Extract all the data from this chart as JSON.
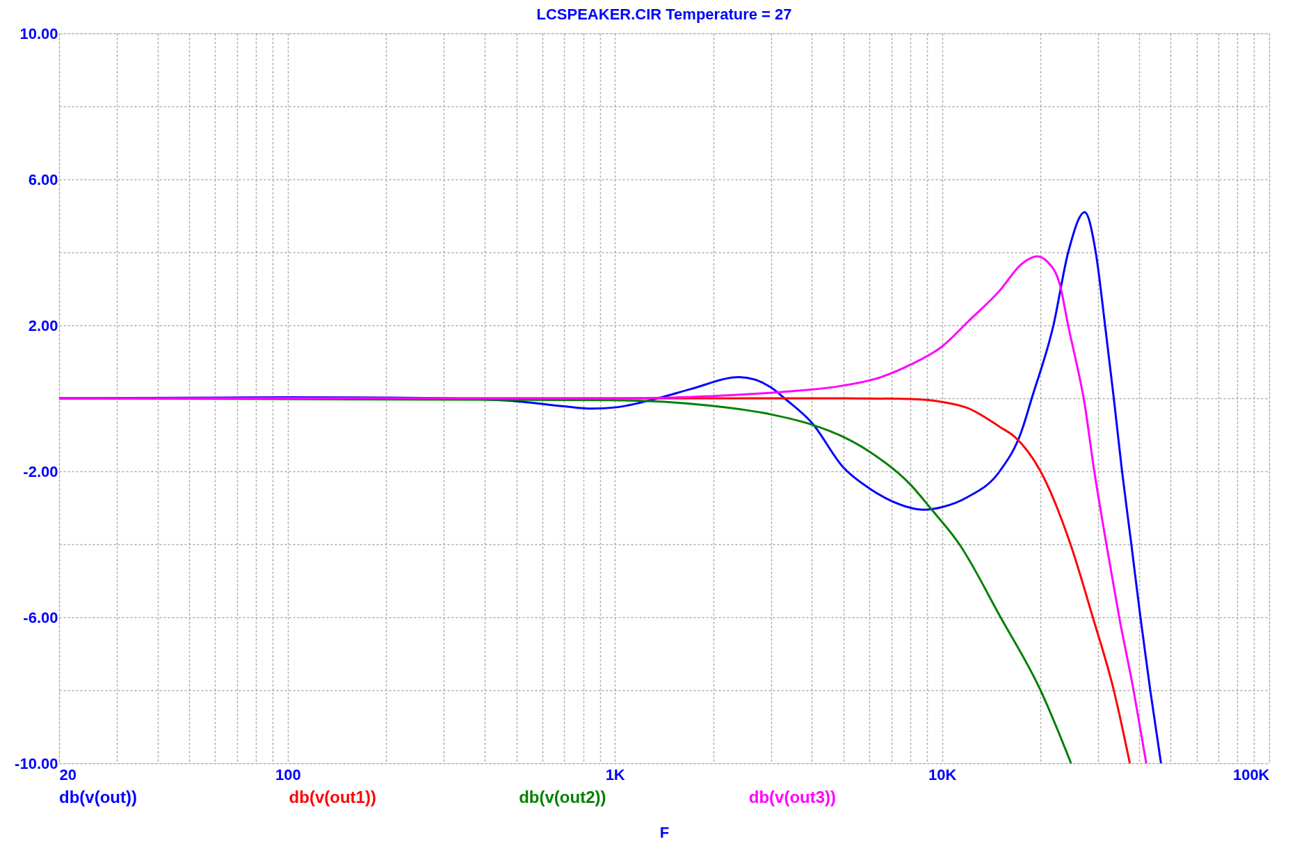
{
  "chart_data": {
    "type": "line",
    "title": "LCSPEAKER.CIR Temperature = 27",
    "xlabel": "F",
    "log": "x",
    "grid": true,
    "legend": "bottom",
    "line_style": "solid",
    "marker": "none",
    "xlim": [
      20,
      100000
    ],
    "xticks": [
      {
        "value": 20,
        "label": "20"
      },
      {
        "value": 30,
        "label": null
      },
      {
        "value": 40,
        "label": null
      },
      {
        "value": 50,
        "label": null
      },
      {
        "value": 60,
        "label": null
      },
      {
        "value": 70,
        "label": null
      },
      {
        "value": 80,
        "label": null
      },
      {
        "value": 90,
        "label": null
      },
      {
        "value": 100,
        "label": "100"
      },
      {
        "value": 200,
        "label": null
      },
      {
        "value": 300,
        "label": null
      },
      {
        "value": 400,
        "label": null
      },
      {
        "value": 500,
        "label": null
      },
      {
        "value": 600,
        "label": null
      },
      {
        "value": 700,
        "label": null
      },
      {
        "value": 800,
        "label": null
      },
      {
        "value": 900,
        "label": null
      },
      {
        "value": 1000,
        "label": "1K"
      },
      {
        "value": 2000,
        "label": null
      },
      {
        "value": 3000,
        "label": null
      },
      {
        "value": 4000,
        "label": null
      },
      {
        "value": 5000,
        "label": null
      },
      {
        "value": 6000,
        "label": null
      },
      {
        "value": 7000,
        "label": null
      },
      {
        "value": 8000,
        "label": null
      },
      {
        "value": 9000,
        "label": null
      },
      {
        "value": 10000,
        "label": "10K"
      },
      {
        "value": 20000,
        "label": null
      },
      {
        "value": 30000,
        "label": null
      },
      {
        "value": 40000,
        "label": null
      },
      {
        "value": 50000,
        "label": null
      },
      {
        "value": 60000,
        "label": null
      },
      {
        "value": 70000,
        "label": null
      },
      {
        "value": 80000,
        "label": null
      },
      {
        "value": 90000,
        "label": null
      },
      {
        "value": 100000,
        "label": "100K"
      }
    ],
    "ylim": [
      -10,
      10
    ],
    "yticks": [
      {
        "value": -10,
        "label": "-10.00"
      },
      {
        "value": -8,
        "label": null
      },
      {
        "value": -6,
        "label": "-6.00"
      },
      {
        "value": -4,
        "label": null
      },
      {
        "value": -2,
        "label": "-2.00"
      },
      {
        "value": 0,
        "label": null
      },
      {
        "value": 2,
        "label": "2.00"
      },
      {
        "value": 4,
        "label": null
      },
      {
        "value": 6,
        "label": "6.00"
      },
      {
        "value": 8,
        "label": null
      },
      {
        "value": 10,
        "label": "10.00"
      }
    ],
    "series": [
      {
        "name": "db(v(out))",
        "color": "#0000ff",
        "x": [
          20,
          62,
          100,
          200,
          300,
          500,
          700,
          850,
          1000,
          1350,
          1700,
          2400,
          3000,
          3300,
          4000,
          5000,
          6000,
          7000,
          8800,
          10000,
          12000,
          15000,
          17500,
          18800,
          21900,
          24300,
          27300,
          29500,
          31500,
          33500,
          35500,
          37900,
          40400,
          43300,
          46700
        ],
        "values": [
          0,
          0.02,
          0.03,
          0.02,
          0,
          -0.08,
          -0.22,
          -0.28,
          -0.25,
          0,
          0.25,
          0.58,
          0.3,
          0,
          -0.67,
          -1.9,
          -2.47,
          -2.81,
          -3.05,
          -2.98,
          -2.7,
          -2,
          -0.9,
          0,
          2,
          4,
          5.1,
          4,
          2,
          0,
          -2,
          -4,
          -6,
          -8,
          -10
        ]
      },
      {
        "name": "db(v(out1))",
        "color": "#ff0000",
        "x": [
          20,
          5000,
          8000,
          10000,
          12000,
          15000,
          16700,
          20000,
          24700,
          28900,
          33500,
          37500
        ],
        "values": [
          0,
          0,
          -0.02,
          -0.1,
          -0.27,
          -0.78,
          -1.06,
          -2,
          -4,
          -6,
          -8,
          -10
        ]
      },
      {
        "name": "db(v(out2))",
        "color": "#008000",
        "x": [
          20,
          1000,
          2000,
          3000,
          4000,
          5000,
          6000,
          8000,
          9200,
          11300,
          15100,
          20000,
          24800
        ],
        "values": [
          0,
          -0.05,
          -0.21,
          -0.44,
          -0.72,
          -1.06,
          -1.46,
          -2.36,
          -3,
          -4,
          -6,
          -8,
          -10
        ]
      },
      {
        "name": "db(v(out3))",
        "color": "#ff00ff",
        "x": [
          20,
          1000,
          1500,
          2400,
          3300,
          5000,
          6500,
          8000,
          10000,
          12000,
          15000,
          17500,
          19500,
          21000,
          23000,
          24300,
          26000,
          27100,
          29200,
          31800,
          34800,
          38500,
          42100
        ],
        "values": [
          0,
          0,
          0.02,
          0.1,
          0.18,
          0.35,
          0.58,
          0.92,
          1.42,
          2.1,
          2.95,
          3.68,
          3.89,
          3.74,
          3.06,
          1.99,
          0.8,
          0,
          -2,
          -4,
          -6,
          -8,
          -10
        ]
      }
    ]
  }
}
